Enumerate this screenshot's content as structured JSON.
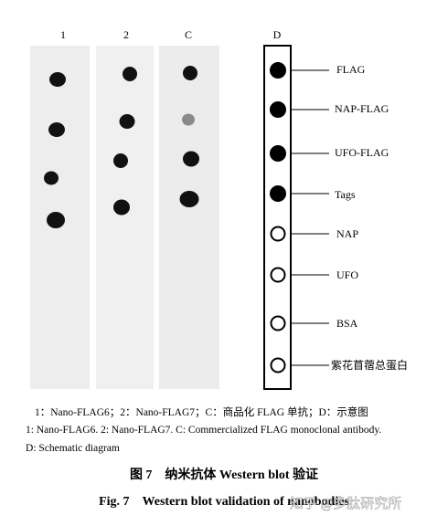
{
  "figure": {
    "lanes": [
      "1",
      "2",
      "C",
      "D"
    ],
    "legend": [
      "FLAG",
      "NAP-FLAG",
      "UFO-FLAG",
      "Tags",
      "NAP",
      "UFO",
      "BSA",
      "紫花苜蓿总蛋白"
    ],
    "caption": [
      "1：Nano-FLAG6；2：Nano-FLAG7；C：商品化 FLAG 单抗；D：示意图",
      "1: Nano-FLAG6. 2: Nano-FLAG7. C: Commercialized FLAG monoclonal antibody.",
      "D: Schematic diagram"
    ],
    "title_cn": "图 7　纳米抗体 Western blot 验证",
    "title_en": "Fig. 7　Western blot validation of nanobodies",
    "watermark": "知乎 @多肽研究所"
  }
}
